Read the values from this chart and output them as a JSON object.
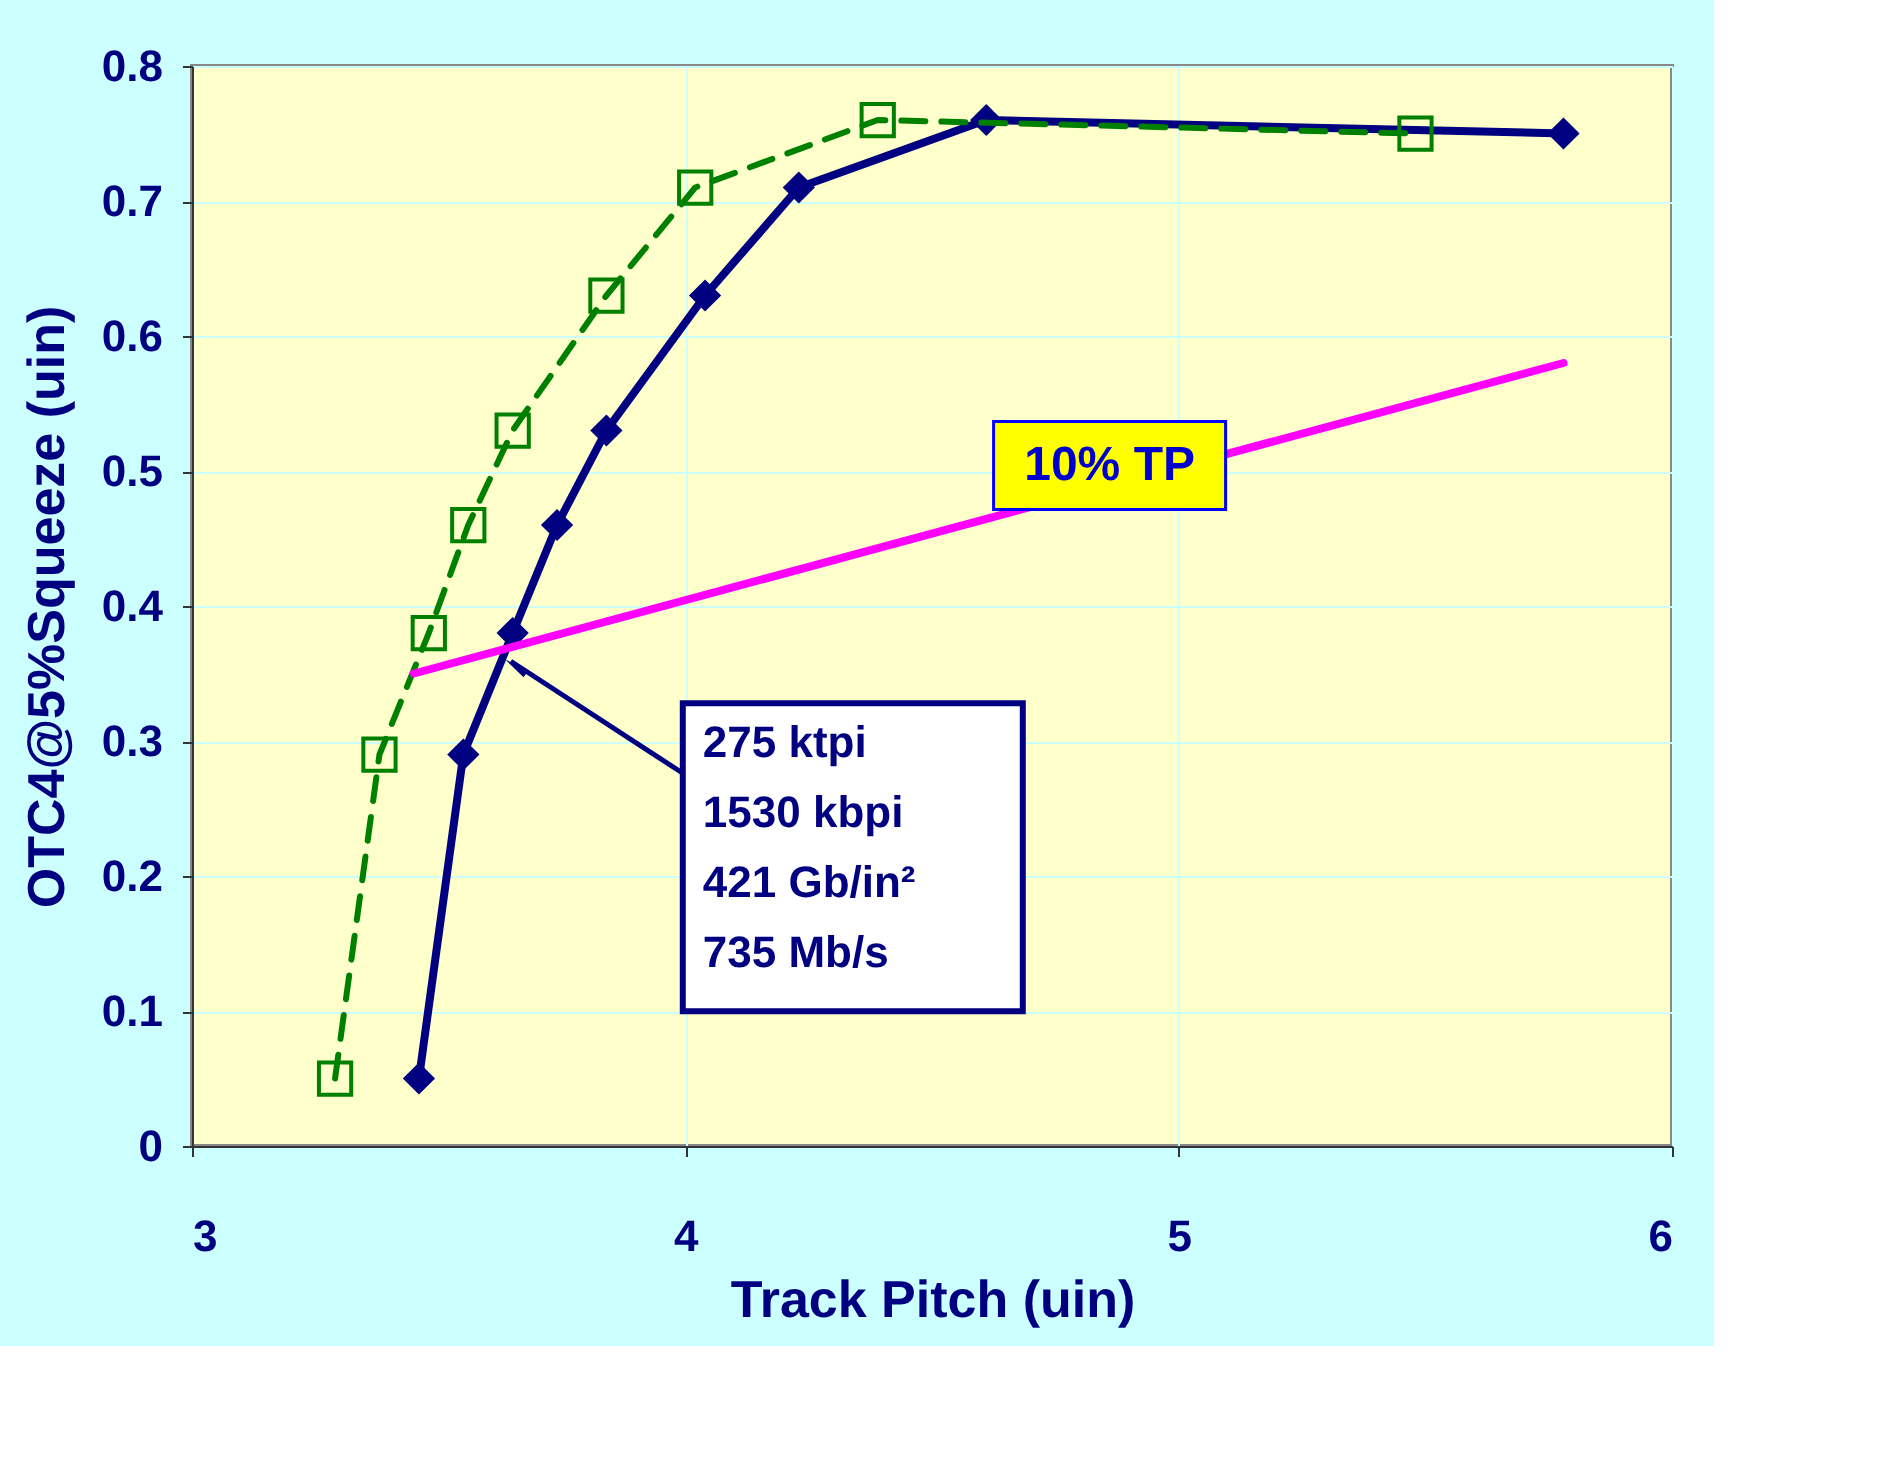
{
  "chart_data": {
    "type": "line",
    "xlabel": "Track Pitch (uin)",
    "ylabel": "OTC4@5%Squeeze (uin)",
    "xlim": [
      3,
      6
    ],
    "xticks": [
      3,
      4,
      5,
      6
    ],
    "ylim": [
      0,
      0.8
    ],
    "yticks": [
      0,
      0.1,
      0.2,
      0.3,
      0.4,
      0.5,
      0.6,
      0.7,
      0.8
    ],
    "grid": true,
    "legend": false,
    "series": [
      {
        "color": "#000080",
        "marker": "diamond",
        "line_style": "solid",
        "x": [
          3.46,
          3.55,
          3.65,
          3.74,
          3.84,
          4.04,
          4.23,
          4.61,
          5.78
        ],
        "values": [
          0.05,
          0.29,
          0.38,
          0.46,
          0.53,
          0.63,
          0.71,
          0.76,
          0.75
        ]
      },
      {
        "color": "#008000",
        "marker": "square",
        "line_style": "dashed",
        "x": [
          3.29,
          3.38,
          3.48,
          3.56,
          3.65,
          3.84,
          4.02,
          4.39,
          5.48
        ],
        "values": [
          0.05,
          0.29,
          0.38,
          0.46,
          0.53,
          0.63,
          0.71,
          0.76,
          0.75
        ]
      },
      {
        "color": "#ff00ff",
        "marker": "none",
        "line_style": "solid",
        "x": [
          3.45,
          5.78
        ],
        "values": [
          0.35,
          0.58
        ]
      }
    ],
    "annotations": [
      "10% TP",
      {
        "text": "275 ktpi\n1530 kbpi\n421 Gb/in²\n735 Mb/s",
        "x": 3.63,
        "y": 0.365
      }
    ]
  }
}
